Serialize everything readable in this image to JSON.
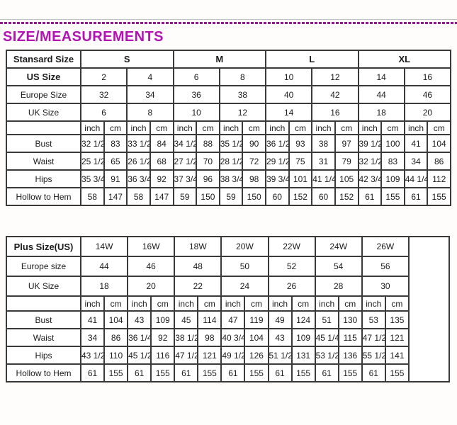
{
  "page": {
    "title": "SIZE/MEASUREMENTS",
    "accent_color": "#b412b4",
    "dash_color": "#8e1b8e",
    "border_color": "#3a3a3a"
  },
  "standard_table": {
    "corner_label": "Stansard Size",
    "size_groups": [
      "S",
      "M",
      "L",
      "XL"
    ],
    "size_rows": [
      {
        "label": "US Size",
        "values": [
          "2",
          "4",
          "6",
          "8",
          "10",
          "12",
          "14",
          "16"
        ]
      },
      {
        "label": "Europe Size",
        "values": [
          "32",
          "34",
          "36",
          "38",
          "40",
          "42",
          "44",
          "46"
        ]
      },
      {
        "label": "UK Size",
        "values": [
          "6",
          "8",
          "10",
          "12",
          "14",
          "16",
          "18",
          "20"
        ]
      }
    ],
    "unit_row": [
      "inch",
      "cm",
      "inch",
      "cm",
      "inch",
      "cm",
      "inch",
      "cm",
      "inch",
      "cm",
      "inch",
      "cm",
      "inch",
      "cm",
      "inch",
      "cm"
    ],
    "measurement_rows": [
      {
        "label": "Bust",
        "values": [
          "32 1/2",
          "83",
          "33 1/2",
          "84",
          "34 1/2",
          "88",
          "35 1/2",
          "90",
          "36 1/2",
          "93",
          "38",
          "97",
          "39 1/2",
          "100",
          "41",
          "104"
        ]
      },
      {
        "label": "Waist",
        "values": [
          "25 1/2",
          "65",
          "26 1/2",
          "68",
          "27 1/2",
          "70",
          "28 1/2",
          "72",
          "29 1/2",
          "75",
          "31",
          "79",
          "32 1/2",
          "83",
          "34",
          "86"
        ]
      },
      {
        "label": "Hips",
        "values": [
          "35 3/4",
          "91",
          "36 3/4",
          "92",
          "37 3/4",
          "96",
          "38 3/4",
          "98",
          "39 3/4",
          "101",
          "41 1/4",
          "105",
          "42 3/4",
          "109",
          "44 1/4",
          "112"
        ]
      },
      {
        "label": "Hollow to Hem",
        "values": [
          "58",
          "147",
          "58",
          "147",
          "59",
          "150",
          "59",
          "150",
          "60",
          "152",
          "60",
          "152",
          "61",
          "155",
          "61",
          "155"
        ]
      }
    ]
  },
  "plus_table": {
    "corner_label": "Plus Size(US)",
    "size_groups": [
      "14W",
      "16W",
      "18W",
      "20W",
      "22W",
      "24W",
      "26W"
    ],
    "size_rows": [
      {
        "label": "Europe size",
        "values": [
          "44",
          "46",
          "48",
          "50",
          "52",
          "54",
          "56"
        ]
      },
      {
        "label": "UK Size",
        "values": [
          "18",
          "20",
          "22",
          "24",
          "26",
          "28",
          "30"
        ]
      }
    ],
    "unit_row": [
      "inch",
      "cm",
      "inch",
      "cm",
      "inch",
      "cm",
      "inch",
      "cm",
      "inch",
      "cm",
      "inch",
      "cm",
      "inch",
      "cm"
    ],
    "measurement_rows": [
      {
        "label": "Bust",
        "values": [
          "41",
          "104",
          "43",
          "109",
          "45",
          "114",
          "47",
          "119",
          "49",
          "124",
          "51",
          "130",
          "53",
          "135"
        ]
      },
      {
        "label": "Waist",
        "values": [
          "34",
          "86",
          "36 1/4",
          "92",
          "38 1/2",
          "98",
          "40 3/4",
          "104",
          "43",
          "109",
          "45 1/4",
          "115",
          "47 1/2",
          "121"
        ]
      },
      {
        "label": "Hips",
        "values": [
          "43 1/2",
          "110",
          "45 1/2",
          "116",
          "47 1/2",
          "121",
          "49 1/2",
          "126",
          "51 1/2",
          "131",
          "53 1/2",
          "136",
          "55 1/2",
          "141"
        ]
      },
      {
        "label": "Hollow to Hem",
        "values": [
          "61",
          "155",
          "61",
          "155",
          "61",
          "155",
          "61",
          "155",
          "61",
          "155",
          "61",
          "155",
          "61",
          "155"
        ]
      }
    ]
  }
}
